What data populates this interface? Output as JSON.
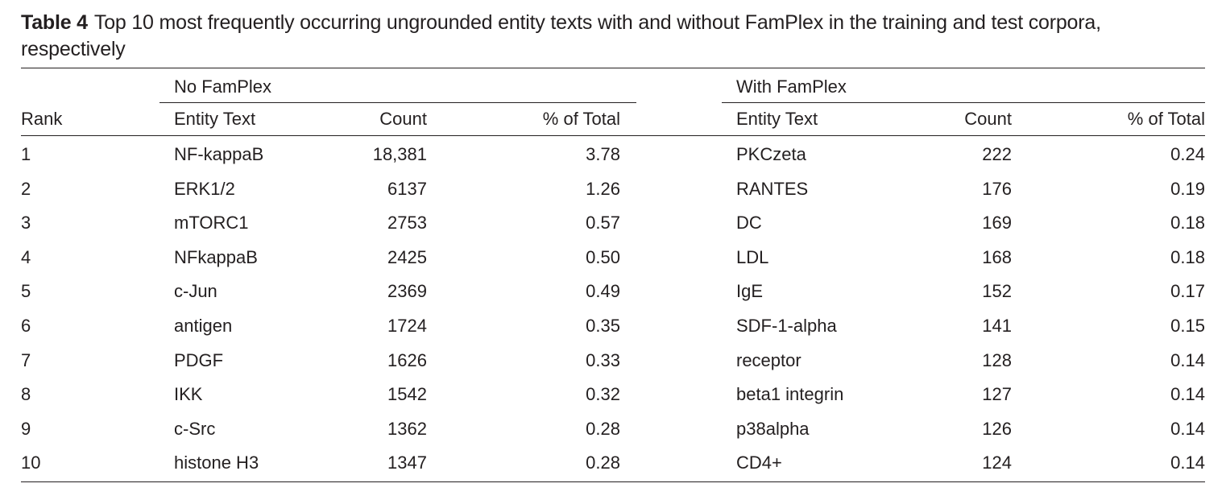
{
  "caption": {
    "label": "Table 4",
    "text": "Top 10 most frequently occurring ungrounded entity texts with and without FamPlex in the training and test corpora, respectively"
  },
  "groups": {
    "left": "No FamPlex",
    "right": "With FamPlex"
  },
  "columns": {
    "rank": "Rank",
    "entity_text": "Entity Text",
    "count": "Count",
    "pct": "% of Total"
  },
  "rows": [
    {
      "rank": "1",
      "nf_text": "NF-kappaB",
      "nf_count": "18,381",
      "nf_pct": "3.78",
      "wf_text": "PKCzeta",
      "wf_count": "222",
      "wf_pct": "0.24"
    },
    {
      "rank": "2",
      "nf_text": "ERK1/2",
      "nf_count": "6137",
      "nf_pct": "1.26",
      "wf_text": "RANTES",
      "wf_count": "176",
      "wf_pct": "0.19"
    },
    {
      "rank": "3",
      "nf_text": "mTORC1",
      "nf_count": "2753",
      "nf_pct": "0.57",
      "wf_text": "DC",
      "wf_count": "169",
      "wf_pct": "0.18"
    },
    {
      "rank": "4",
      "nf_text": "NFkappaB",
      "nf_count": "2425",
      "nf_pct": "0.50",
      "wf_text": "LDL",
      "wf_count": "168",
      "wf_pct": "0.18"
    },
    {
      "rank": "5",
      "nf_text": "c-Jun",
      "nf_count": "2369",
      "nf_pct": "0.49",
      "wf_text": "IgE",
      "wf_count": "152",
      "wf_pct": "0.17"
    },
    {
      "rank": "6",
      "nf_text": "antigen",
      "nf_count": "1724",
      "nf_pct": "0.35",
      "wf_text": "SDF-1-alpha",
      "wf_count": "141",
      "wf_pct": "0.15"
    },
    {
      "rank": "7",
      "nf_text": "PDGF",
      "nf_count": "1626",
      "nf_pct": "0.33",
      "wf_text": "receptor",
      "wf_count": "128",
      "wf_pct": "0.14"
    },
    {
      "rank": "8",
      "nf_text": "IKK",
      "nf_count": "1542",
      "nf_pct": "0.32",
      "wf_text": "beta1 integrin",
      "wf_count": "127",
      "wf_pct": "0.14"
    },
    {
      "rank": "9",
      "nf_text": "c-Src",
      "nf_count": "1362",
      "nf_pct": "0.28",
      "wf_text": "p38alpha",
      "wf_count": "126",
      "wf_pct": "0.14"
    },
    {
      "rank": "10",
      "nf_text": "histone H3",
      "nf_count": "1347",
      "nf_pct": "0.28",
      "wf_text": "CD4+",
      "wf_count": "124",
      "wf_pct": "0.14"
    }
  ]
}
